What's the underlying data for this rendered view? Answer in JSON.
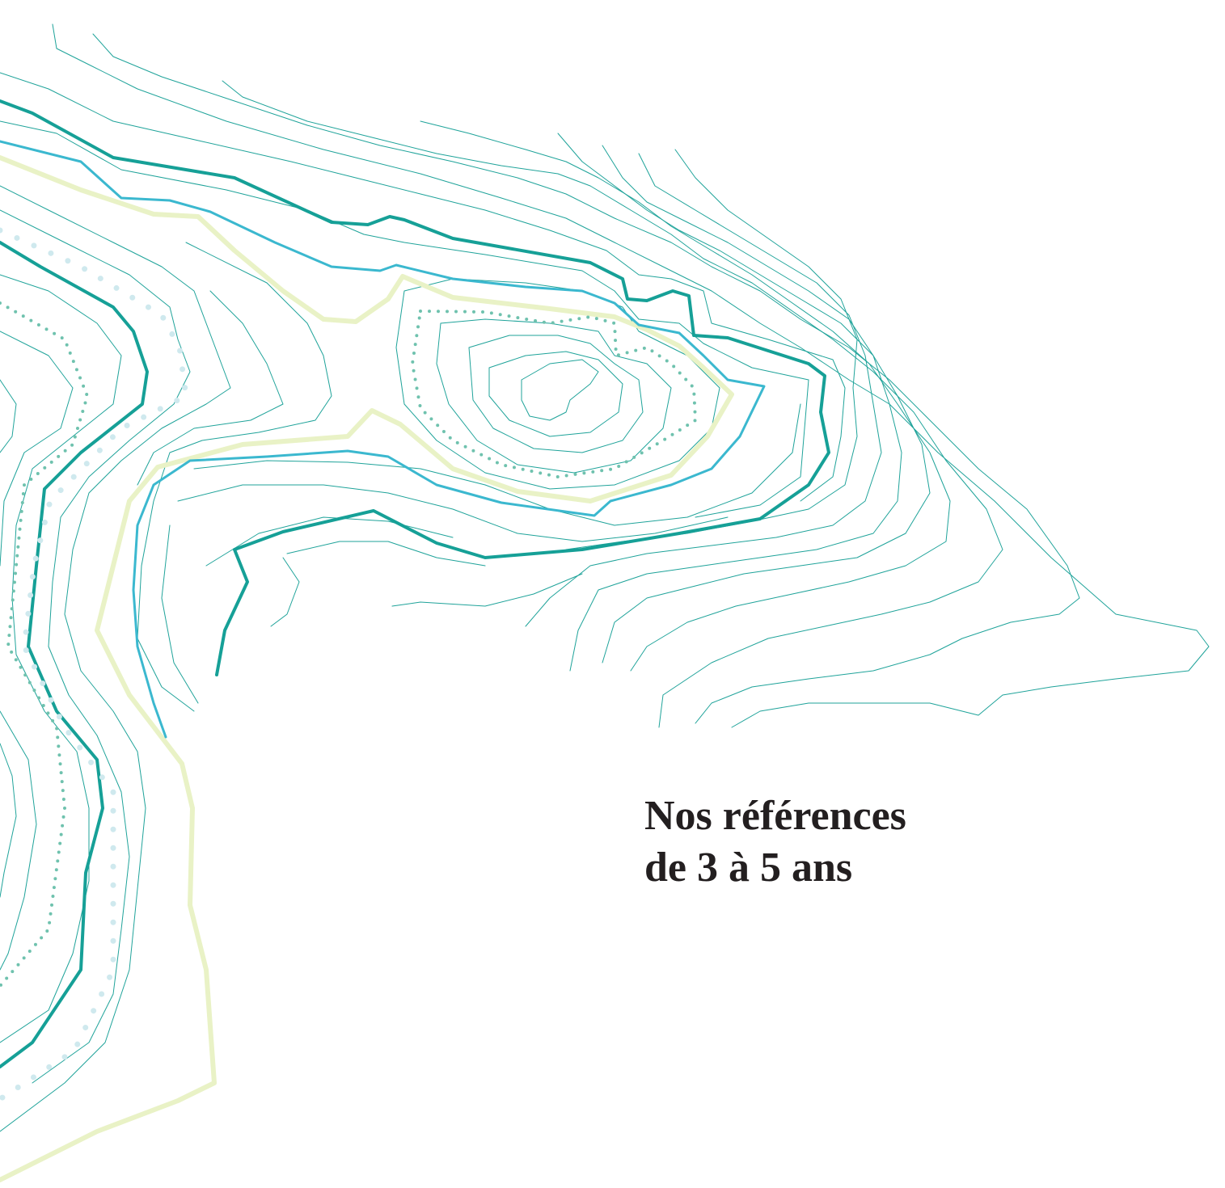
{
  "title": {
    "lines": [
      "Nos références",
      "de 3 à 5 ans"
    ]
  }
}
